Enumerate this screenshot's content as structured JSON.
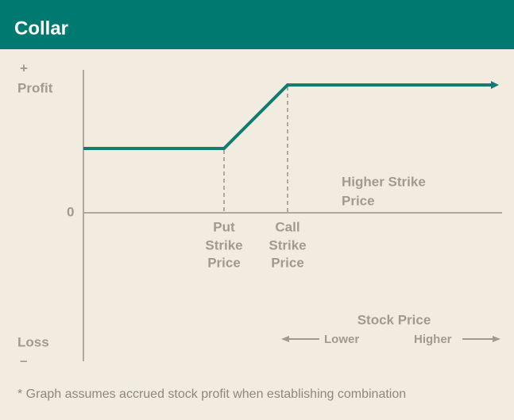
{
  "header": {
    "title": "Collar"
  },
  "axes": {
    "y_top_sign": "+",
    "y_top_label": "Profit",
    "zero_label": "0",
    "y_bottom_label": "Loss",
    "y_bottom_sign": "–",
    "x_label": "Stock Price",
    "x_left_label": "Lower",
    "x_right_label": "Higher"
  },
  "annotations": {
    "higher_strike": [
      "Higher Strike",
      "Price"
    ],
    "put_strike": [
      "Put",
      "Strike",
      "Price"
    ],
    "call_strike": [
      "Call",
      "Strike",
      "Price"
    ]
  },
  "footnote": "* Graph assumes accrued stock profit when establishing combination"
}
